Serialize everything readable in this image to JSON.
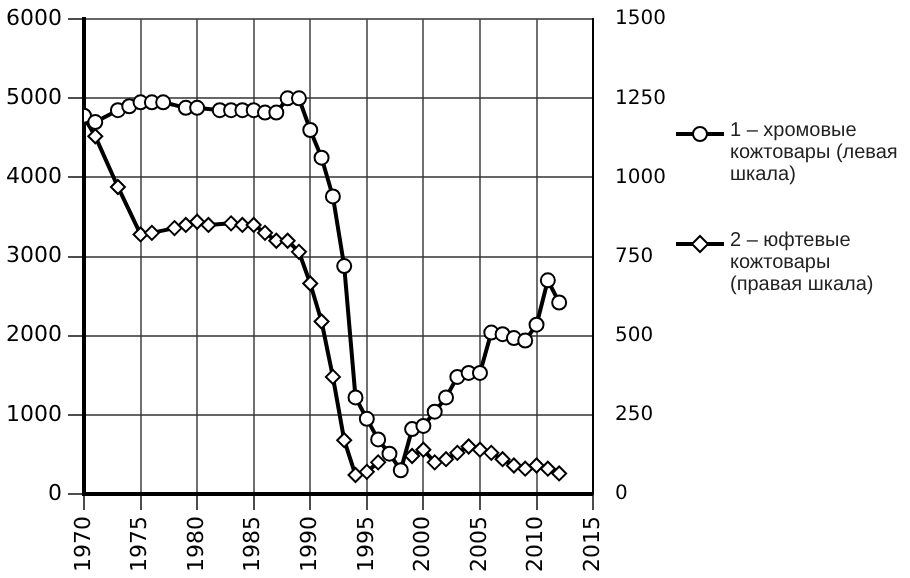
{
  "chart_data": {
    "type": "line",
    "legend": "right",
    "grid": true,
    "line_style": "solid",
    "xlim": [
      1970,
      2015
    ],
    "xticks": [
      1970,
      1975,
      1980,
      1985,
      1990,
      1995,
      2000,
      2005,
      2010,
      2015
    ],
    "ylim": [
      0,
      6000
    ],
    "yticks": [
      0,
      1000,
      2000,
      3000,
      4000,
      5000,
      6000
    ],
    "y2lim": [
      0,
      1500
    ],
    "y2ticks": [
      0,
      250,
      500,
      750,
      1000,
      1250,
      1500
    ],
    "series": [
      {
        "name": "1 – хромовые кожтовары (левая шкала)",
        "color": "#000000",
        "marker": "circle",
        "x": [
          1970,
          1971,
          1973,
          1974,
          1975,
          1976,
          1977,
          1979,
          1980,
          1982,
          1983,
          1984,
          1985,
          1986,
          1987,
          1988,
          1989,
          1990,
          1991,
          1992,
          1993,
          1994,
          1995,
          1996,
          1997,
          1998,
          1999,
          2000,
          2001,
          2002,
          2003,
          2004,
          2005,
          2006,
          2007,
          2008,
          2009,
          2010,
          2011,
          2012
        ],
        "values": [
          4780,
          4700,
          4850,
          4900,
          4950,
          4950,
          4950,
          4880,
          4880,
          4850,
          4850,
          4850,
          4850,
          4820,
          4820,
          5000,
          5000,
          4600,
          4250,
          3760,
          2880,
          1220,
          950,
          690,
          510,
          300,
          820,
          860,
          1040,
          1220,
          1480,
          1530,
          1530,
          2040,
          2020,
          1970,
          1940,
          2140,
          2700,
          2420
        ]
      },
      {
        "name": "2 – юфтевые кожтовары (правая шкала)",
        "color": "#000000",
        "marker": "diamond",
        "axis": "y2",
        "x": [
          1970,
          1971,
          1973,
          1975,
          1976,
          1978,
          1979,
          1980,
          1981,
          1983,
          1984,
          1985,
          1986,
          1987,
          1988,
          1989,
          1990,
          1991,
          1992,
          1993,
          1994,
          1995,
          1996,
          1997,
          1998,
          1999,
          2000,
          2001,
          2002,
          2003,
          2004,
          2005,
          2006,
          2007,
          2008,
          2009,
          2010,
          2011,
          2012
        ],
        "values": [
          1190,
          1130,
          970,
          820,
          825,
          840,
          850,
          860,
          850,
          855,
          850,
          850,
          825,
          800,
          800,
          765,
          665,
          545,
          370,
          170,
          60,
          70,
          100,
          null,
          null,
          120,
          140,
          100,
          110,
          130,
          150,
          140,
          130,
          110,
          90,
          80,
          90,
          80,
          65
        ]
      }
    ]
  }
}
